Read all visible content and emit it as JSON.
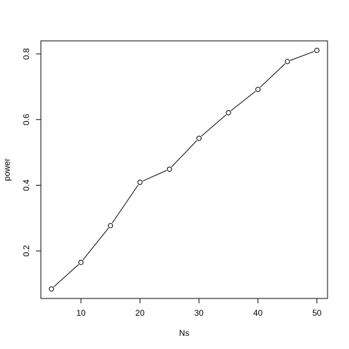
{
  "chart_data": {
    "type": "line",
    "title": "",
    "xlabel": "Ns",
    "ylabel": "power",
    "x": [
      5,
      10,
      15,
      20,
      25,
      30,
      35,
      40,
      45,
      50
    ],
    "series": [
      {
        "values": [
          0.084,
          0.165,
          0.277,
          0.409,
          0.449,
          0.543,
          0.621,
          0.692,
          0.777,
          0.811
        ]
      }
    ],
    "xlim": [
      3.2,
      51.8
    ],
    "ylim": [
      0.0551,
      0.8399
    ],
    "xticks": [
      10,
      20,
      30,
      40,
      50
    ],
    "yticks": [
      0.2,
      0.4,
      0.6,
      0.8
    ],
    "xtick_labels": [
      "10",
      "20",
      "30",
      "40",
      "50"
    ],
    "ytick_labels": [
      "0.2",
      "0.4",
      "0.6",
      "0.8"
    ],
    "grid": false,
    "legend": "none",
    "marker": "open-circle",
    "colors": {
      "line": "#000000",
      "marker": "#000000",
      "background": "#ffffff"
    }
  }
}
